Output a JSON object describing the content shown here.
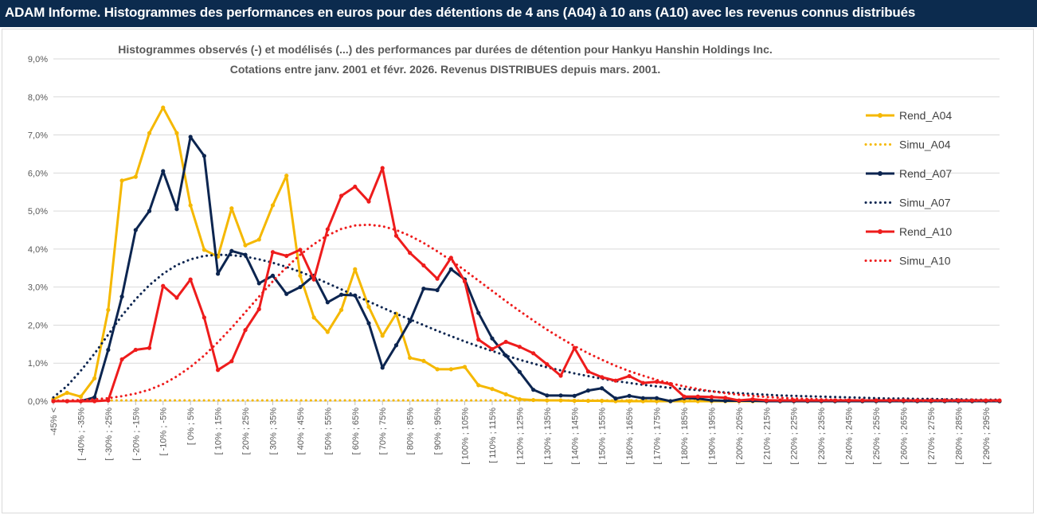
{
  "header": {
    "title": "ADAM Informe. Histogrammes des performances en euros pour des détentions de 4 ans (A04) à 10 ans (A10) avec les revenus connus distribués"
  },
  "chart_data": {
    "type": "line",
    "title": "Histogrammes observés (-) et modélisés (...) des performances par durées de détention pour Hankyu Hanshin Holdings Inc.",
    "subtitle": "Cotations entre janv. 2001 et févr. 2026. Revenus DISTRIBUES depuis mars. 2001.",
    "xlabel": "",
    "ylabel": "",
    "ylim": [
      0,
      9
    ],
    "yticks": [
      "0,0%",
      "1,0%",
      "2,0%",
      "3,0%",
      "4,0%",
      "5,0%",
      "6,0%",
      "7,0%",
      "8,0%",
      "9,0%"
    ],
    "grid": "horizontal",
    "legend_position": "right",
    "categories": [
      "-45% <",
      "[ -45% ; -40%",
      "[ -40% ; -35%",
      "[ -35% ; -30%",
      "[ -30% ; -25%",
      "[ -25% ; -20%",
      "[ -20% ; -15%",
      "[ -15% ; -10%",
      "[ -10% ; -5%",
      "[ -5% ; 0%",
      "[ 0% ; 5%",
      "[ 5% ; 10%",
      "[ 10% ; 15%",
      "[ 15% ; 20%",
      "[ 20% ; 25%",
      "[ 25% ; 30%",
      "[ 30% ; 35%",
      "[ 35% ; 40%",
      "[ 40% ; 45%",
      "[ 45% ; 50%",
      "[ 50% ; 55%",
      "[ 55% ; 60%",
      "[ 60% ; 65%",
      "[ 65% ; 70%",
      "[ 70% ; 75%",
      "[ 75% ; 80%",
      "[ 80% ; 85%",
      "[ 85% ; 90%",
      "[ 90% ; 95%",
      "[ 95% ; 100%",
      "[ 100% ; 105%",
      "[ 105% ; 110%",
      "[ 110% ; 115%",
      "[ 115% ; 120%",
      "[ 120% ; 125%",
      "[ 125% ; 130%",
      "[ 130% ; 135%",
      "[ 135% ; 140%",
      "[ 140% ; 145%",
      "[ 145% ; 150%",
      "[ 150% ; 155%",
      "[ 155% ; 160%",
      "[ 160% ; 165%",
      "[ 165% ; 170%",
      "[ 170% ; 175%",
      "[ 175% ; 180%",
      "[ 180% ; 185%",
      "[ 185% ; 190%",
      "[ 190% ; 195%",
      "[ 195% ; 200%",
      "[ 200% ; 205%",
      "[ 205% ; 210%",
      "[ 210% ; 215%",
      "[ 215% ; 220%",
      "[ 220% ; 225%",
      "[ 225% ; 230%",
      "[ 230% ; 235%",
      "[ 235% ; 240%",
      "[ 240% ; 245%",
      "[ 245% ; 250%",
      "[ 250% ; 255%",
      "[ 255% ; 260%",
      "[ 260% ; 265%",
      "[ 265% ; 270%",
      "[ 270% ; 275%",
      "[ 275% ; 280%",
      "[ 280% ; 285%",
      "[ 285% ; 290%",
      "[ 290% ; 295%",
      "[ 295% ; 300%"
    ],
    "visible_tick_step": 2,
    "series": [
      {
        "name": "Rend_A04",
        "style": "solid",
        "color": "#f5b800",
        "values": [
          0.05,
          0.22,
          0.12,
          0.6,
          2.4,
          5.8,
          5.9,
          7.05,
          7.72,
          7.05,
          5.15,
          3.98,
          3.8,
          5.07,
          4.1,
          4.25,
          5.15,
          5.93,
          3.3,
          2.2,
          1.82,
          2.4,
          3.47,
          2.48,
          1.72,
          2.3,
          1.14,
          1.06,
          0.84,
          0.84,
          0.9,
          0.42,
          0.32,
          0.18,
          0.05,
          0.03,
          0.02,
          0.02,
          0.01,
          0.01,
          0.01,
          0,
          0,
          0,
          0,
          0,
          0,
          0,
          0,
          0,
          0,
          0,
          0,
          0,
          0,
          0,
          0,
          0,
          0,
          0,
          0,
          0,
          0,
          0,
          0,
          0,
          0,
          0,
          0,
          0
        ]
      },
      {
        "name": "Simu_A04",
        "style": "dotted",
        "color": "#f5b800",
        "values": [
          0.02,
          0.02,
          0.02,
          0.02,
          0.02,
          0.02,
          0.02,
          0.02,
          0.02,
          0.02,
          0.02,
          0.02,
          0.02,
          0.02,
          0.02,
          0.02,
          0.02,
          0.02,
          0.02,
          0.02,
          0.02,
          0.02,
          0.02,
          0.02,
          0.02,
          0.02,
          0.02,
          0.02,
          0.02,
          0.02,
          0.02,
          0.02,
          0.02,
          0.02,
          0.02,
          0.02,
          0.02,
          0.02,
          0.02,
          0.02,
          0.02,
          0.02,
          0.02,
          0.02,
          0.02,
          0.02,
          0.02,
          0.02,
          0.02,
          0.02,
          0.02,
          0.02,
          0.02,
          0.02,
          0.02,
          0.02,
          0.02,
          0.02,
          0.02,
          0.02,
          0.02,
          0.02,
          0.02,
          0.02,
          0.02,
          0.02,
          0.02,
          0.02,
          0.02,
          0.02
        ]
      },
      {
        "name": "Rend_A07",
        "style": "solid",
        "color": "#0c2550",
        "values": [
          0,
          0,
          0,
          0.1,
          1.35,
          2.75,
          4.5,
          5.0,
          6.05,
          5.05,
          6.95,
          6.45,
          3.35,
          3.95,
          3.85,
          3.1,
          3.3,
          2.82,
          3.0,
          3.3,
          2.6,
          2.8,
          2.78,
          2.05,
          0.88,
          1.47,
          2.1,
          2.96,
          2.92,
          3.47,
          3.2,
          2.32,
          1.65,
          1.2,
          0.77,
          0.3,
          0.15,
          0.15,
          0.14,
          0.28,
          0.34,
          0.07,
          0.14,
          0.08,
          0.08,
          0,
          0.08,
          0.07,
          0.02,
          0.01,
          0.01,
          0.01,
          0,
          0,
          0,
          0,
          0,
          0,
          0,
          0,
          0,
          0,
          0,
          0,
          0,
          0,
          0,
          0,
          0,
          0
        ]
      },
      {
        "name": "Simu_A07",
        "style": "dotted",
        "color": "#0c2550",
        "values": [
          0.1,
          0.4,
          0.8,
          1.25,
          1.75,
          2.25,
          2.68,
          3.05,
          3.35,
          3.58,
          3.73,
          3.82,
          3.85,
          3.84,
          3.8,
          3.73,
          3.64,
          3.53,
          3.4,
          3.26,
          3.1,
          2.94,
          2.78,
          2.62,
          2.46,
          2.3,
          2.15,
          2.0,
          1.85,
          1.71,
          1.57,
          1.44,
          1.32,
          1.2,
          1.09,
          0.99,
          0.89,
          0.81,
          0.73,
          0.66,
          0.59,
          0.53,
          0.48,
          0.43,
          0.39,
          0.35,
          0.32,
          0.29,
          0.26,
          0.23,
          0.21,
          0.19,
          0.17,
          0.15,
          0.14,
          0.13,
          0.12,
          0.11,
          0.1,
          0.09,
          0.08,
          0.07,
          0.07,
          0.06,
          0.06,
          0.05,
          0.05,
          0.04,
          0.04,
          0.04
        ]
      },
      {
        "name": "Rend_A10",
        "style": "solid",
        "color": "#ee1c1c",
        "values": [
          0,
          0,
          0,
          0,
          0.02,
          1.1,
          1.35,
          1.4,
          3.03,
          2.72,
          3.2,
          2.2,
          0.82,
          1.05,
          1.87,
          2.42,
          3.92,
          3.82,
          3.98,
          3.2,
          4.52,
          5.4,
          5.64,
          5.25,
          6.13,
          4.35,
          3.9,
          3.57,
          3.22,
          3.77,
          3.15,
          1.62,
          1.37,
          1.56,
          1.43,
          1.26,
          0.97,
          0.67,
          1.4,
          0.78,
          0.63,
          0.54,
          0.66,
          0.48,
          0.51,
          0.45,
          0.12,
          0.12,
          0.11,
          0.09,
          0.02,
          0.05,
          0.02,
          0.02,
          0.02,
          0.02,
          0.02,
          0.02,
          0.02,
          0.02,
          0.02,
          0.02,
          0.02,
          0.02,
          0.02,
          0.02,
          0.02,
          0.02,
          0.02,
          0.02
        ]
      },
      {
        "name": "Simu_A10",
        "style": "dotted",
        "color": "#ee1c1c",
        "values": [
          0.01,
          0.02,
          0.03,
          0.05,
          0.08,
          0.13,
          0.2,
          0.3,
          0.45,
          0.65,
          0.9,
          1.2,
          1.55,
          1.93,
          2.34,
          2.75,
          3.15,
          3.52,
          3.85,
          4.13,
          4.36,
          4.53,
          4.62,
          4.64,
          4.6,
          4.5,
          4.35,
          4.16,
          3.94,
          3.7,
          3.44,
          3.17,
          2.9,
          2.63,
          2.37,
          2.12,
          1.88,
          1.66,
          1.45,
          1.26,
          1.09,
          0.93,
          0.79,
          0.67,
          0.56,
          0.47,
          0.39,
          0.32,
          0.26,
          0.21,
          0.17,
          0.14,
          0.11,
          0.09,
          0.07,
          0.06,
          0.05,
          0.04,
          0.03,
          0.02,
          0.02,
          0.02,
          0.01,
          0.01,
          0.01,
          0.01,
          0.01,
          0.01,
          0.01,
          0.01
        ]
      }
    ]
  }
}
